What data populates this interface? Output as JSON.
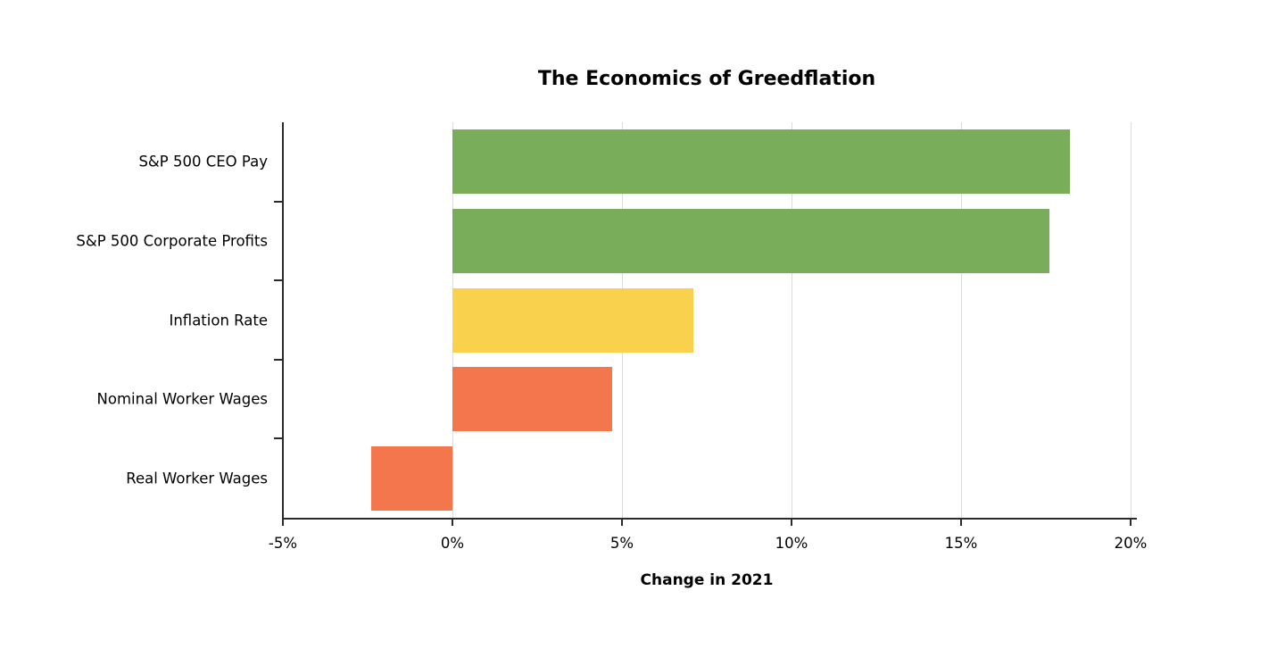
{
  "chart_data": {
    "type": "bar",
    "orientation": "horizontal",
    "title": "The Economics of Greedflation",
    "xlabel": "Change in 2021",
    "categories": [
      "S&P 500 CEO Pay",
      "S&P 500 Corporate Profits",
      "Inflation Rate",
      "Nominal Worker Wages",
      "Real Worker Wages"
    ],
    "values": [
      18.2,
      17.6,
      7.1,
      4.7,
      -2.4
    ],
    "bar_colors": [
      "#7aad5a",
      "#7aad5a",
      "#fad14d",
      "#f3764d",
      "#f3764d"
    ],
    "xlim": [
      -5,
      20
    ],
    "xticks": [
      -5,
      0,
      5,
      10,
      15,
      20
    ],
    "xtick_labels": [
      "-5%",
      "0%",
      "5%",
      "10%",
      "15%",
      "20%"
    ],
    "grid": true,
    "legend": false,
    "colors": {
      "grid": "#dcdcdc",
      "axis": "#2b2b2b",
      "background": "#ffffff",
      "green": "#7aad5a",
      "yellow": "#fad14d",
      "orange": "#f3764d"
    }
  }
}
